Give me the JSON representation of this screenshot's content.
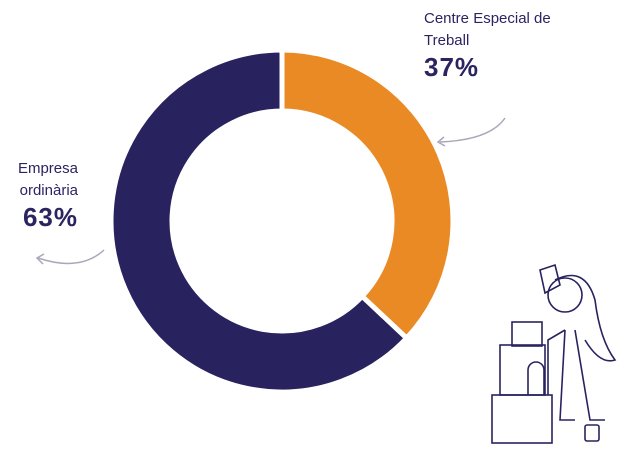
{
  "chart_data": {
    "type": "donut",
    "categories": [
      "Centre Especial de Treball",
      "Empresa ordinària"
    ],
    "values": [
      37,
      63
    ],
    "value_labels": [
      "37%",
      "63%"
    ],
    "colors": [
      "#e98a25",
      "#28235f"
    ]
  }
}
